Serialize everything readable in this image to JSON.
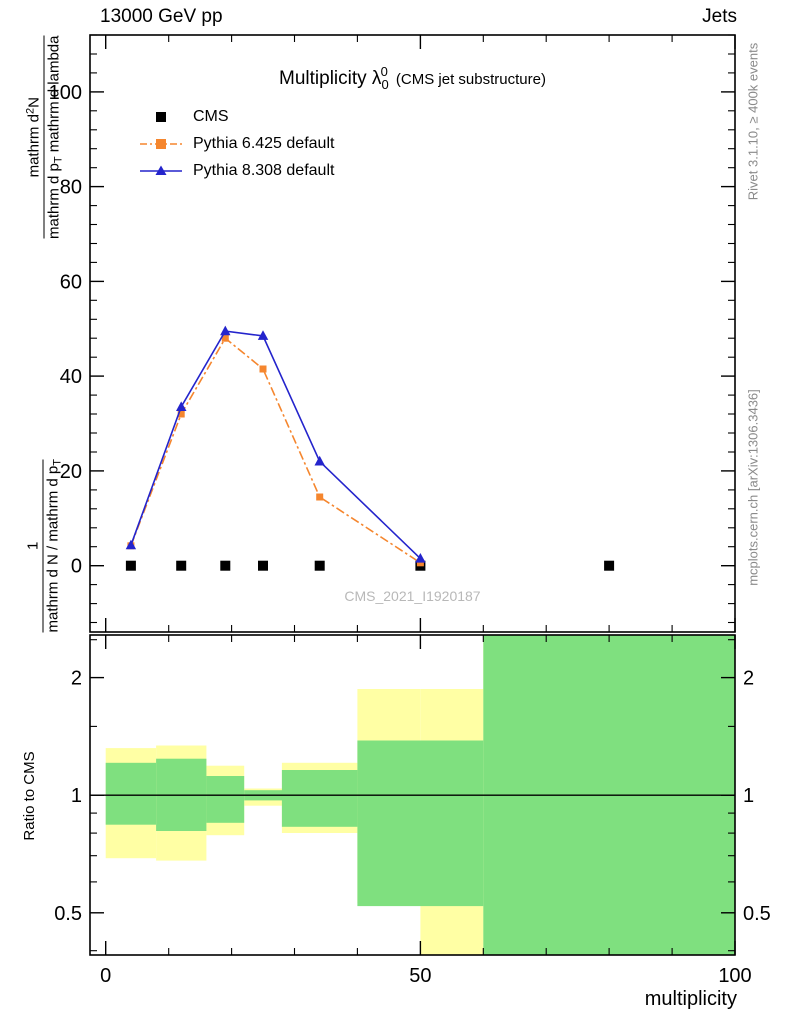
{
  "header": {
    "left": "13000 GeV pp",
    "right": "Jets"
  },
  "plot_title": {
    "main": "Multiplicity λ",
    "sub": "0",
    "sup": "0",
    "suffix": "(CMS jet substructure)"
  },
  "watermark": "CMS_2021_I1920187",
  "side_labels": {
    "rivet": "Rivet 3.1.10, ≥ 400k events",
    "mcplots": "mcplots.cern.ch [arXiv:1306.3436]"
  },
  "ylabel": {
    "frac1_num": "1",
    "frac1_den": "mathrm d N / mathrm d p",
    "frac1_den_sub": "T",
    "frac2_num_pre": "mathrm d",
    "frac2_num_sup": "2",
    "frac2_num_post": "N",
    "frac2_den_pre": "mathrm d p",
    "frac2_den_sub": "T",
    "frac2_den_post": " mathrm d lambda"
  },
  "ratio_ylabel": "Ratio to CMS",
  "xlabel": "multiplicity",
  "legend": [
    {
      "label": "CMS",
      "marker": "square",
      "color": "#000000",
      "line": "none"
    },
    {
      "label": "Pythia 6.425 default",
      "marker": "square",
      "color": "#f5862e",
      "line": "dashdot"
    },
    {
      "label": "Pythia 8.308 default",
      "marker": "triangle",
      "color": "#2424cc",
      "line": "solid"
    }
  ],
  "chart_data": {
    "type": "line",
    "title": "Multiplicity λ_0^0 (CMS jet substructure)",
    "xlabel": "multiplicity",
    "ylabel": "1/(mathrm d N / mathrm d p_T) · mathrm d^2 N/(mathrm d p_T mathrm d lambda)",
    "ratio_ylabel": "Ratio to CMS",
    "legend_position": "top-left",
    "grid": false,
    "panels": {
      "main": {
        "xlim": [
          -2.5,
          100
        ],
        "ylim": [
          -14,
          112
        ],
        "xticks": [
          0,
          50,
          100
        ],
        "x_minor_step": 10,
        "yticks": [
          0,
          20,
          40,
          60,
          80,
          100
        ],
        "y_minor_step": 4
      },
      "ratio": {
        "yscale": "log",
        "ylim": [
          0.39,
          2.57
        ],
        "yticks": [
          0.5,
          1,
          2
        ],
        "ytick_labels": [
          "0.5",
          "1",
          "2"
        ],
        "y_minor": [
          0.4,
          0.6,
          0.7,
          0.8,
          0.9,
          1.5,
          2.5
        ],
        "reference_line": 1
      }
    },
    "series": [
      {
        "name": "CMS",
        "marker": "square",
        "marker_size": 10,
        "color": "#000000",
        "line": "none",
        "x": [
          4,
          12,
          19,
          25,
          34,
          50,
          80
        ],
        "y": [
          0,
          0,
          0,
          0,
          0,
          0,
          0
        ]
      },
      {
        "name": "Pythia 6.425 default",
        "marker": "square",
        "marker_size": 7,
        "color": "#f5862e",
        "line": "dashdot",
        "x": [
          4,
          12,
          19,
          25,
          34,
          50
        ],
        "y": [
          4.2,
          32,
          48,
          41.5,
          14.5,
          0.6
        ]
      },
      {
        "name": "Pythia 8.308 default",
        "marker": "triangle",
        "marker_size": 9,
        "color": "#2424cc",
        "line": "solid",
        "x": [
          4,
          12,
          19,
          25,
          34,
          50
        ],
        "y": [
          4.3,
          33.5,
          49.5,
          48.5,
          22,
          1.5
        ]
      }
    ],
    "ratio_bands": {
      "yellow_color": "#ffffa4",
      "green_color": "#7fe07f",
      "yellow": [
        [
          0,
          8,
          0.69,
          1.32
        ],
        [
          8,
          16,
          0.68,
          1.34
        ],
        [
          16,
          22,
          0.79,
          1.19
        ],
        [
          22,
          28,
          0.94,
          1.04
        ],
        [
          28,
          40,
          0.8,
          1.21
        ],
        [
          40,
          50,
          0.53,
          1.87
        ],
        [
          50,
          60,
          0.39,
          1.87
        ],
        [
          60,
          100,
          0.39,
          2.57
        ]
      ],
      "green": [
        [
          0,
          8,
          0.84,
          1.21
        ],
        [
          8,
          16,
          0.81,
          1.24
        ],
        [
          16,
          22,
          0.85,
          1.12
        ],
        [
          22,
          28,
          0.97,
          1.03
        ],
        [
          28,
          40,
          0.83,
          1.16
        ],
        [
          40,
          60,
          0.52,
          1.38
        ],
        [
          60,
          100,
          0.39,
          2.57
        ]
      ]
    }
  }
}
